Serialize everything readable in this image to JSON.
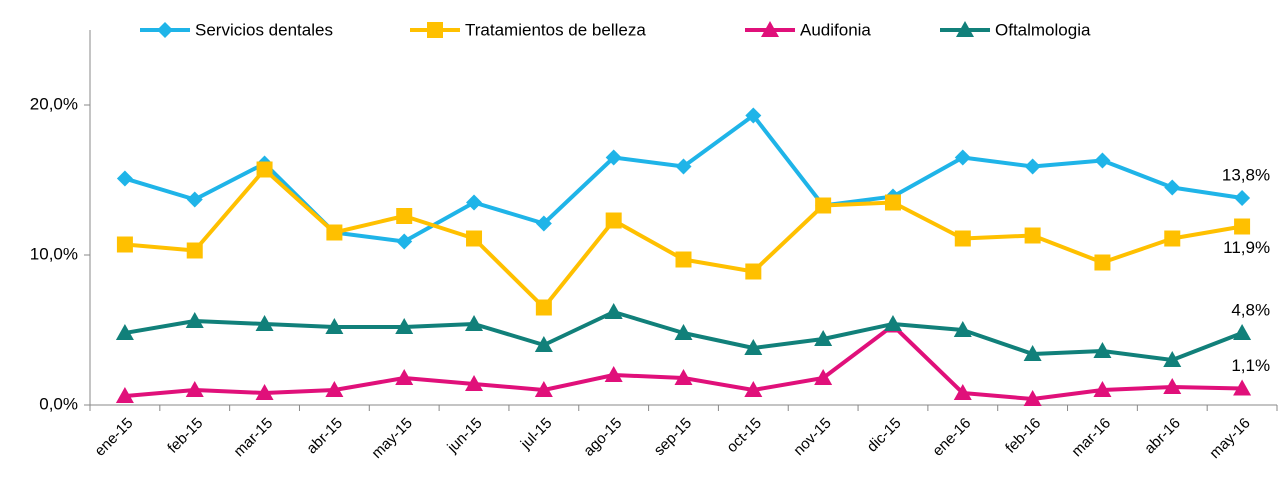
{
  "chart_data": {
    "type": "line",
    "categories": [
      "ene-15",
      "feb-15",
      "mar-15",
      "abr-15",
      "may-15",
      "jun-15",
      "jul-15",
      "ago-15",
      "sep-15",
      "oct-15",
      "nov-15",
      "dic-15",
      "ene-16",
      "feb-16",
      "mar-16",
      "abr-16",
      "may-16"
    ],
    "series": [
      {
        "name": "Servicios dentales",
        "color": "#1fb4e8",
        "marker": "diamond",
        "values": [
          15.1,
          13.7,
          16.1,
          11.5,
          10.9,
          13.5,
          12.1,
          16.5,
          15.9,
          19.3,
          13.3,
          13.9,
          16.5,
          15.9,
          16.3,
          14.5,
          13.8
        ],
        "value_labels": [
          null,
          null,
          null,
          null,
          null,
          null,
          null,
          null,
          null,
          null,
          null,
          null,
          null,
          null,
          null,
          null,
          "13,8%"
        ]
      },
      {
        "name": "Tratamientos de belleza",
        "color": "#ffc000",
        "marker": "square",
        "values": [
          10.7,
          10.3,
          15.7,
          11.5,
          12.6,
          11.1,
          6.5,
          12.3,
          9.7,
          8.9,
          13.3,
          13.5,
          11.1,
          11.3,
          9.5,
          11.1,
          11.9
        ],
        "value_labels": [
          null,
          null,
          null,
          null,
          null,
          null,
          null,
          null,
          null,
          null,
          null,
          null,
          null,
          null,
          null,
          null,
          "11,9%"
        ]
      },
      {
        "name": "Audifonia",
        "color": "#e0107a",
        "marker": "triangle",
        "values": [
          0.6,
          1.0,
          0.8,
          1.0,
          1.8,
          1.4,
          1.0,
          2.0,
          1.8,
          1.0,
          1.8,
          5.3,
          0.8,
          0.4,
          1.0,
          1.2,
          1.1
        ],
        "value_labels": [
          null,
          null,
          null,
          null,
          null,
          null,
          null,
          null,
          null,
          null,
          null,
          null,
          null,
          null,
          null,
          null,
          "1,1%"
        ]
      },
      {
        "name": "Oftalmologia",
        "color": "#11807a",
        "marker": "triangle",
        "values": [
          4.8,
          5.6,
          5.4,
          5.2,
          5.2,
          5.4,
          4.0,
          6.2,
          4.8,
          3.8,
          4.4,
          5.4,
          5.0,
          3.4,
          3.6,
          3.0,
          4.8
        ],
        "value_labels": [
          null,
          null,
          null,
          null,
          null,
          null,
          null,
          null,
          null,
          null,
          null,
          null,
          null,
          null,
          null,
          null,
          "4,8%"
        ]
      }
    ],
    "ylim": [
      0,
      25
    ],
    "yticks": [
      {
        "value": 0,
        "label": "0,0%"
      },
      {
        "value": 10,
        "label": "10,0%"
      },
      {
        "value": 20,
        "label": "20,0%"
      }
    ],
    "legend": "top"
  }
}
